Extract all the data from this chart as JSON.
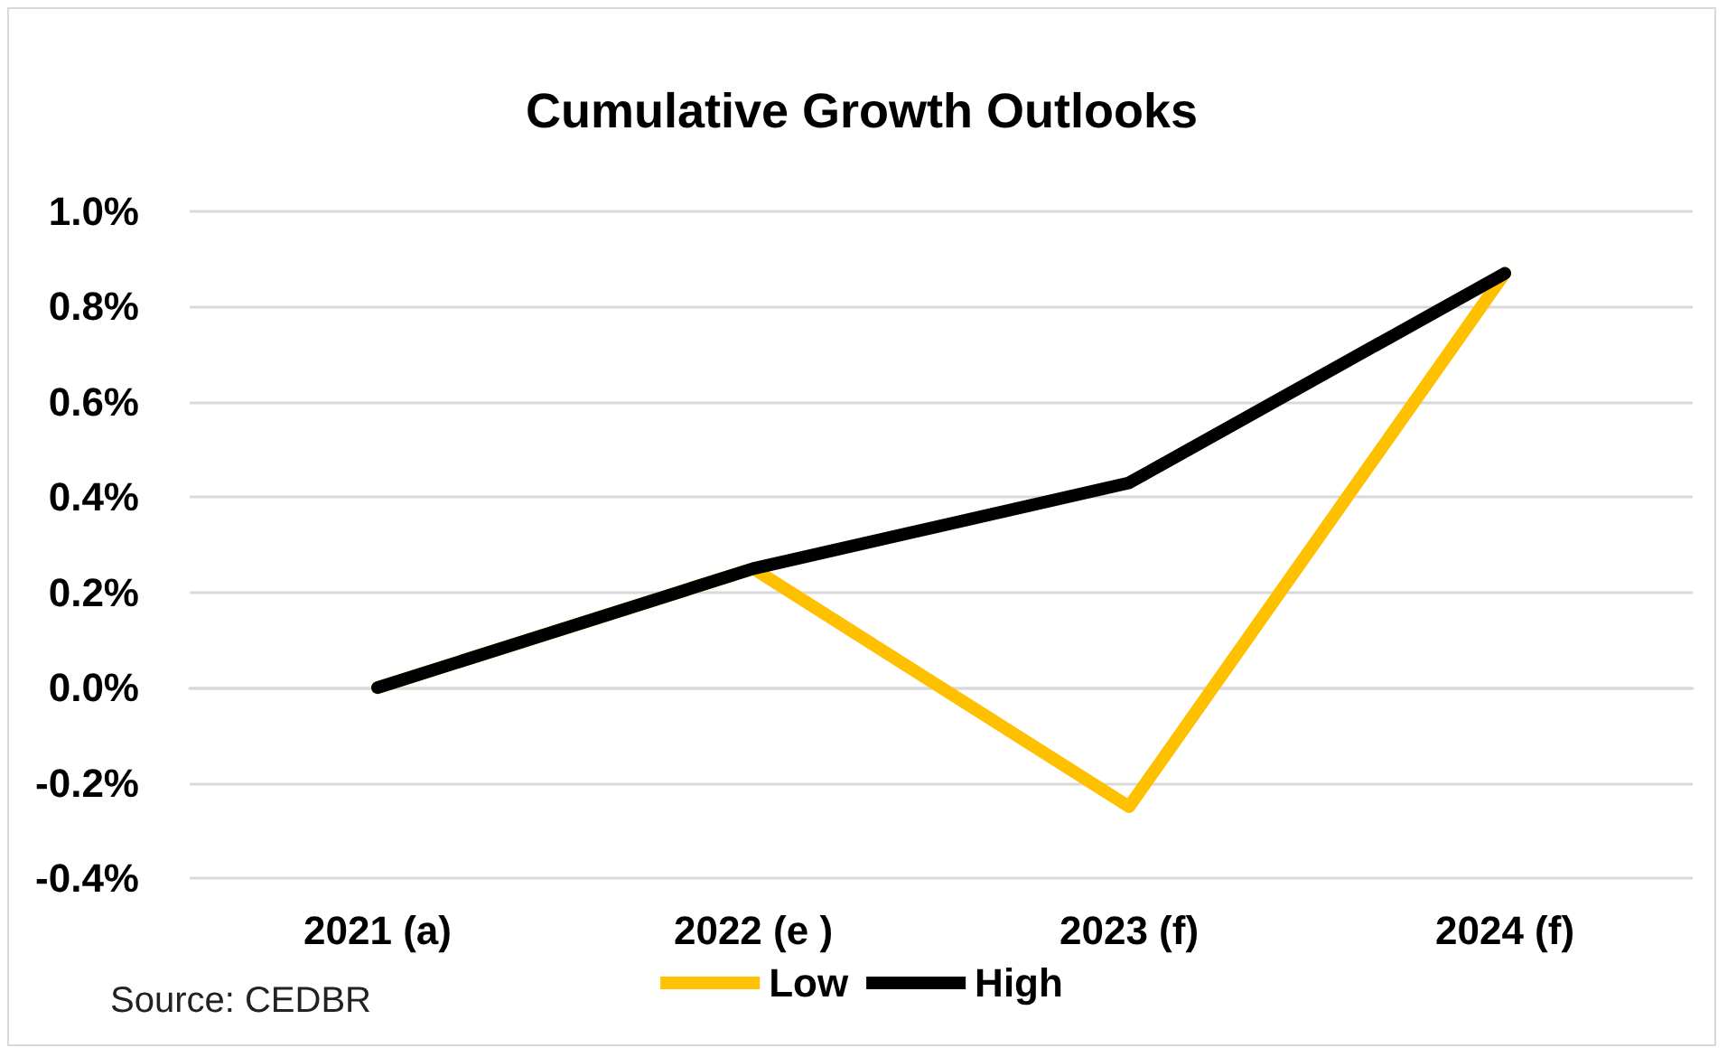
{
  "chart_data": {
    "type": "line",
    "title": "Cumulative Growth Outlooks",
    "categories": [
      "2021 (a)",
      "2022 (e )",
      "2023 (f)",
      "2024 (f)"
    ],
    "series": [
      {
        "name": "Low",
        "color": "#ffc000",
        "values": [
          0,
          0.25,
          -0.25,
          0.87
        ]
      },
      {
        "name": "High",
        "color": "#000000",
        "values": [
          0,
          0.25,
          0.43,
          0.87
        ]
      }
    ],
    "ylim": [
      -0.4,
      1.0
    ],
    "yticks": [
      {
        "value": -0.4,
        "label": "-0.4%"
      },
      {
        "value": -0.2,
        "label": "-0.2%"
      },
      {
        "value": 0,
        "label": "0.0%"
      },
      {
        "value": 0.2,
        "label": "0.2%"
      },
      {
        "value": 0.4,
        "label": "0.4%"
      },
      {
        "value": 0.6,
        "label": "0.6%"
      },
      {
        "value": 0.8,
        "label": "0.8%"
      },
      {
        "value": 1.0,
        "label": "1.0%"
      }
    ],
    "grid": "y",
    "legend": "bottom",
    "marker": "none",
    "line_style": "solid",
    "annotations": [
      "Source: CEDBR"
    ]
  }
}
